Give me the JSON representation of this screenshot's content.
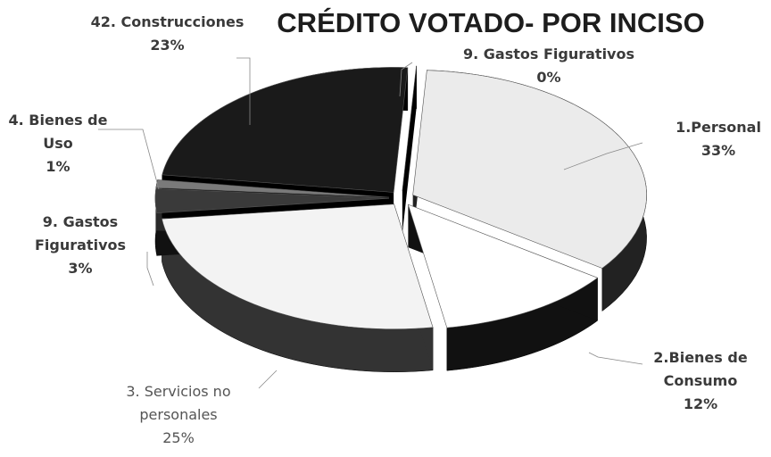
{
  "chart_data": {
    "type": "pie",
    "title": "CRÉDITO VOTADO- POR INCISO",
    "categories": [
      "1.Personal",
      "2.Bienes de Consumo",
      "3. Servicios no personales",
      "9. Gastos Figurativos",
      "4. Bienes de Uso",
      "42. Construcciones",
      "9. Gastos Figurativos"
    ],
    "values": [
      33,
      12,
      25,
      3,
      1,
      23,
      0
    ],
    "value_labels": [
      "33%",
      "12%",
      "25%",
      "3%",
      "1%",
      "23%",
      "0%"
    ],
    "colors": [
      "#ebebeb",
      "#ffffff",
      "#f3f3f3",
      "#3a3a3a",
      "#7a7a7a",
      "#1a1a1a",
      "#2a2a2a"
    ],
    "side_colors": [
      "#222222",
      "#111111",
      "#333333",
      "#111111",
      "#2a2a2a",
      "#000000",
      "#000000"
    ]
  }
}
